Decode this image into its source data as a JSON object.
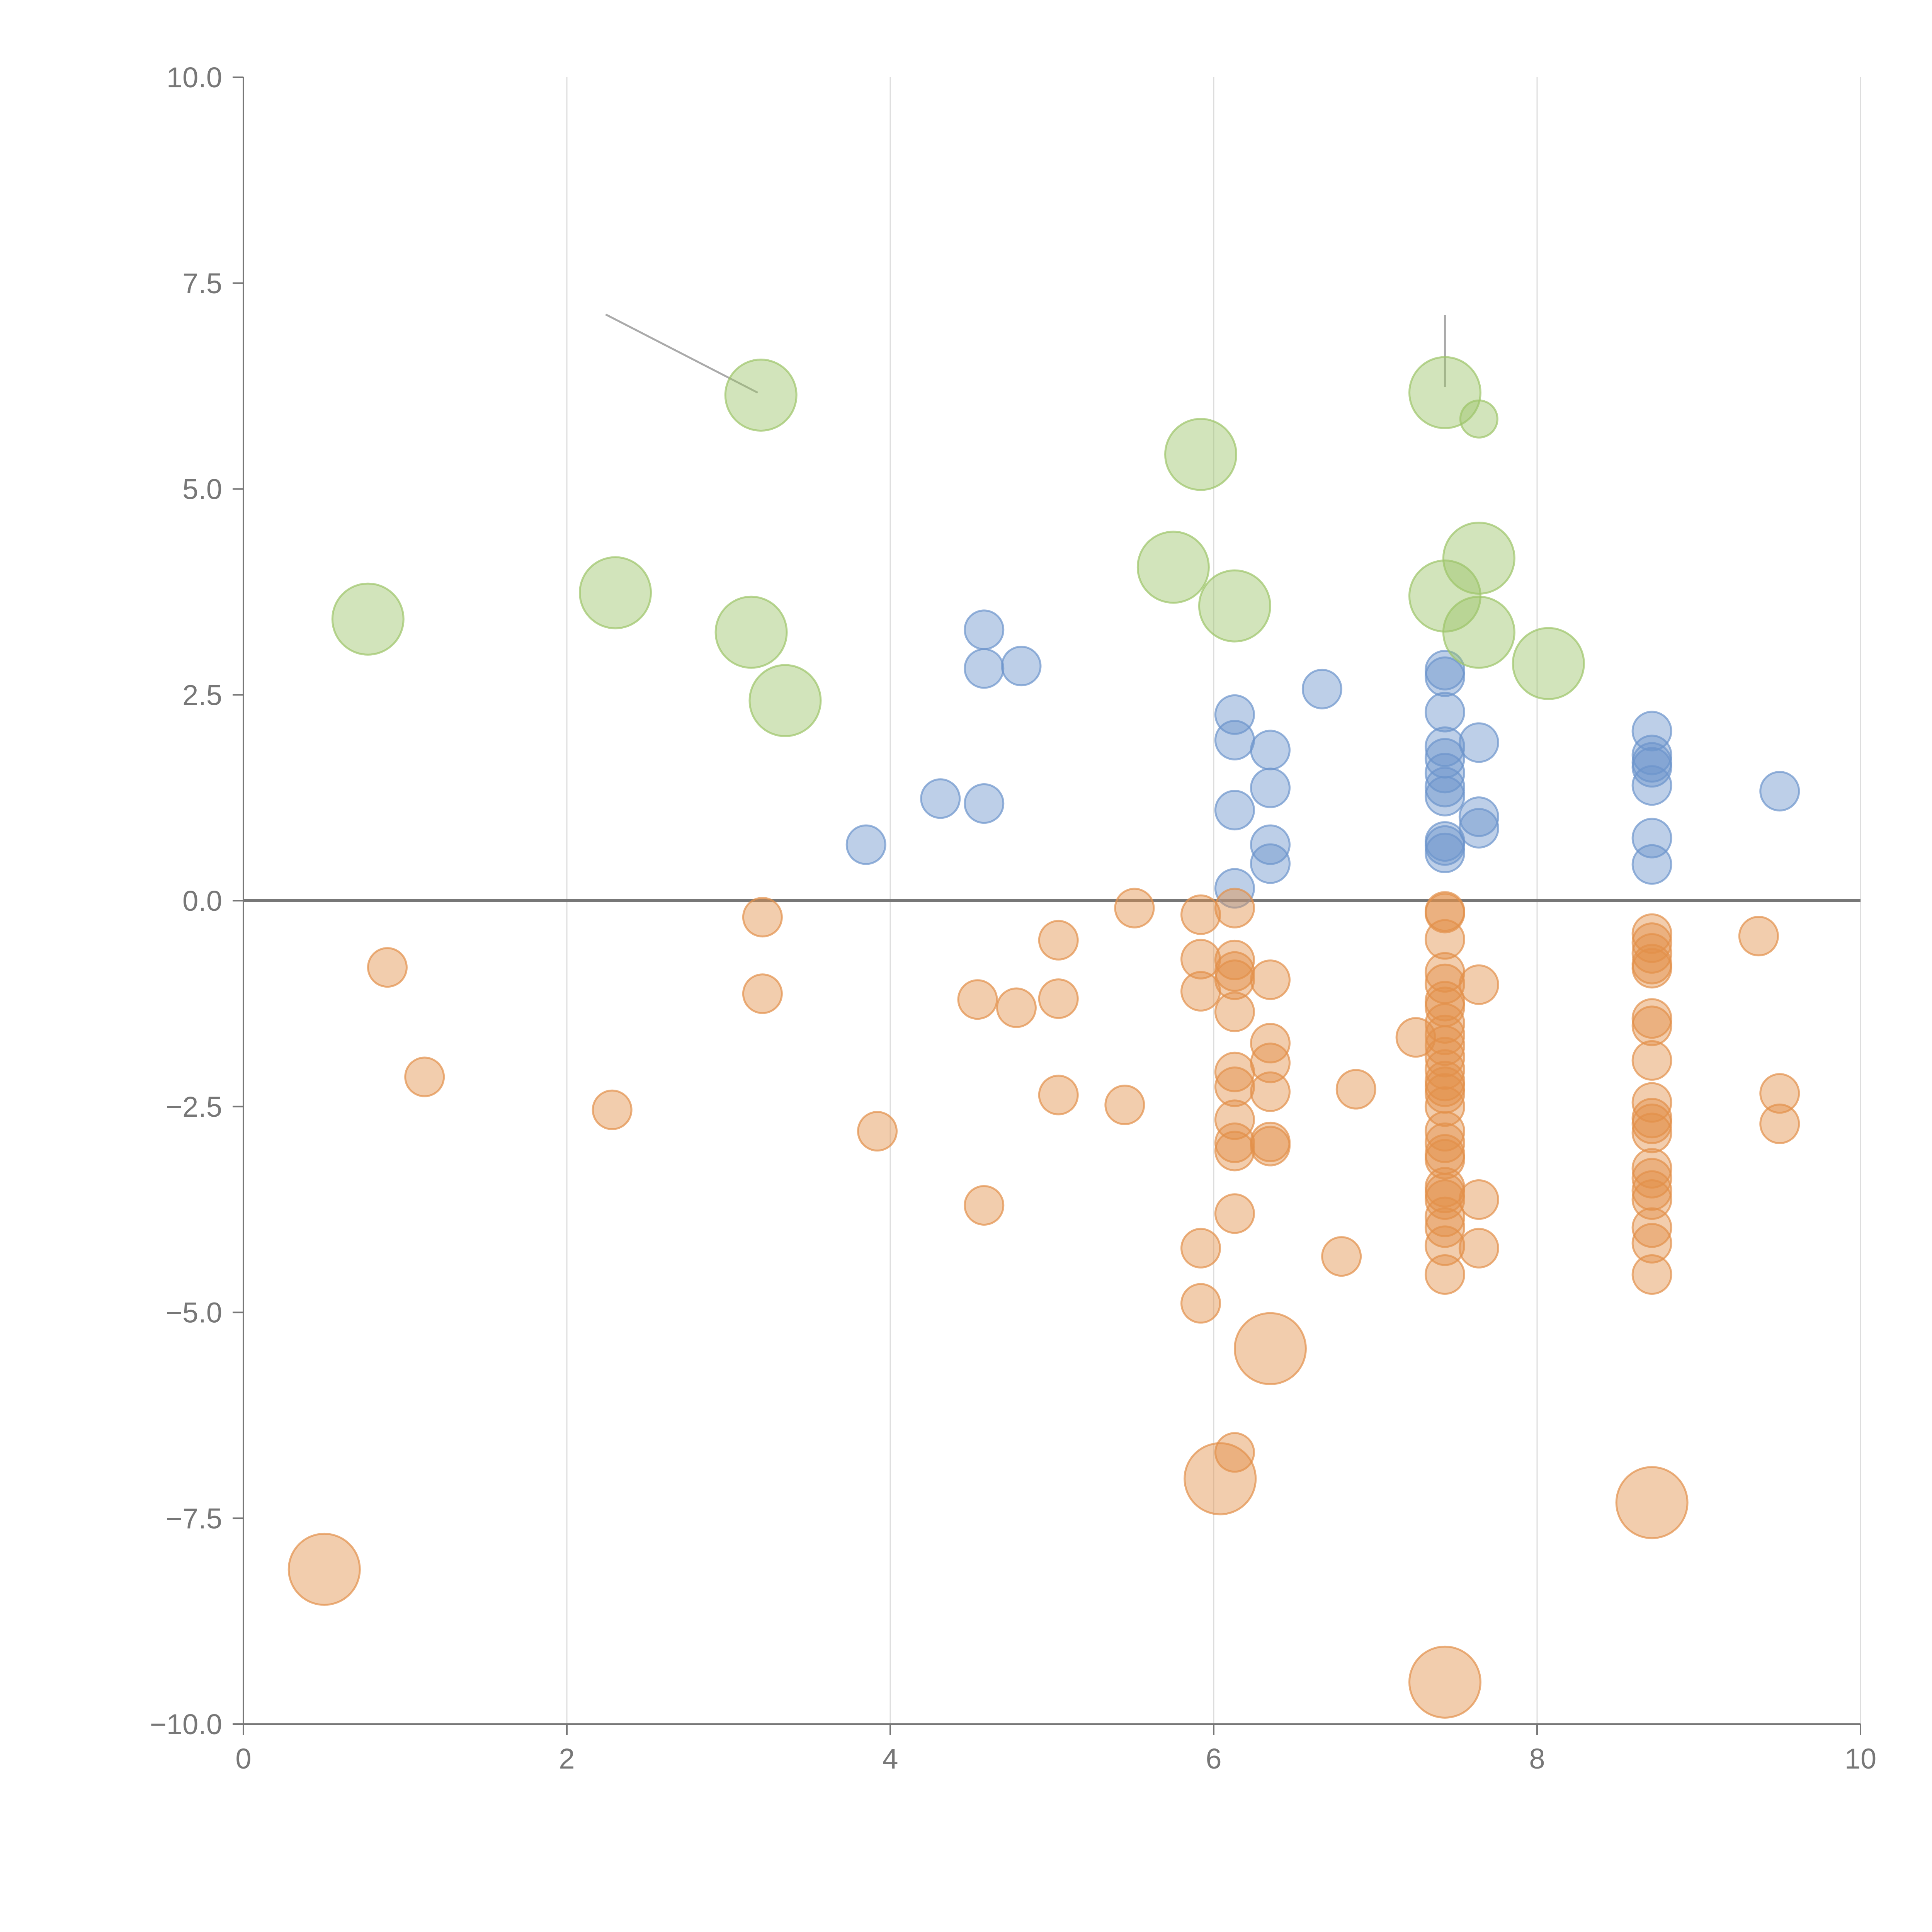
{
  "chart_data": {
    "type": "scatter",
    "title": "",
    "xlabel": "",
    "ylabel": "",
    "xlim": [
      0,
      10
    ],
    "ylim": [
      -10,
      10
    ],
    "x_ticks": [
      0,
      2,
      4,
      6,
      8,
      10
    ],
    "x_tick_labels": [
      "0",
      "2",
      "4",
      "6",
      "8",
      "10"
    ],
    "y_ticks": [
      10,
      7.5,
      5,
      2.5,
      0,
      -2.5,
      -5,
      -7.5,
      -10
    ],
    "y_tick_labels": [
      "10.0",
      "7.5",
      "5.0",
      "2.5",
      "0.0",
      "−2.5",
      "−5.0",
      "−7.5",
      "−10.0"
    ],
    "vertical_grid": true,
    "zero_line": true,
    "colors": {
      "blue": "#6c94cc",
      "orange": "#e2904a",
      "green": "#9cc468",
      "axis": "#777777",
      "grid": "#dddddd",
      "zero_line": "#777777",
      "label_line": "#aaaaaa"
    },
    "series": [
      {
        "name": "positive (blue)",
        "color_key": "blue",
        "points": [
          [
            3.85,
            0.68
          ],
          [
            4.31,
            1.24
          ],
          [
            4.58,
            3.29
          ],
          [
            4.58,
            2.82
          ],
          [
            4.58,
            1.18
          ],
          [
            4.81,
            2.85
          ],
          [
            6.13,
            2.26
          ],
          [
            6.13,
            1.95
          ],
          [
            6.13,
            1.1
          ],
          [
            6.13,
            0.15
          ],
          [
            6.35,
            1.83
          ],
          [
            6.35,
            1.37
          ],
          [
            6.35,
            0.68
          ],
          [
            6.35,
            0.45
          ],
          [
            6.67,
            2.57
          ],
          [
            7.43,
            2.8
          ],
          [
            7.43,
            2.72
          ],
          [
            7.43,
            2.29
          ],
          [
            7.43,
            1.87
          ],
          [
            7.43,
            1.73
          ],
          [
            7.43,
            1.55
          ],
          [
            7.43,
            1.38
          ],
          [
            7.43,
            1.27
          ],
          [
            7.43,
            0.72
          ],
          [
            7.43,
            0.67
          ],
          [
            7.43,
            0.58
          ],
          [
            7.64,
            1.92
          ],
          [
            7.64,
            1.02
          ],
          [
            7.64,
            0.88
          ],
          [
            8.71,
            2.06
          ],
          [
            8.71,
            1.77
          ],
          [
            8.71,
            1.68
          ],
          [
            8.71,
            1.62
          ],
          [
            8.71,
            1.4
          ],
          [
            8.71,
            0.76
          ],
          [
            8.71,
            0.44
          ],
          [
            9.5,
            1.33
          ]
        ]
      },
      {
        "name": "negative (orange)",
        "color_key": "orange",
        "points": [
          [
            0.89,
            -0.81
          ],
          [
            1.12,
            -2.14
          ],
          [
            2.28,
            -2.54
          ],
          [
            3.21,
            -0.2
          ],
          [
            3.21,
            -1.13
          ],
          [
            3.92,
            -2.8
          ],
          [
            4.54,
            -1.2
          ],
          [
            4.58,
            -3.7
          ],
          [
            4.78,
            -1.3
          ],
          [
            5.04,
            -0.48
          ],
          [
            5.04,
            -1.19
          ],
          [
            5.04,
            -2.36
          ],
          [
            5.45,
            -2.48
          ],
          [
            5.51,
            -0.09
          ],
          [
            5.92,
            -0.17
          ],
          [
            5.92,
            -0.71
          ],
          [
            5.92,
            -1.1
          ],
          [
            5.92,
            -4.22
          ],
          [
            5.92,
            -4.89
          ],
          [
            6.13,
            -0.09
          ],
          [
            6.13,
            -0.72
          ],
          [
            6.13,
            -0.86
          ],
          [
            6.13,
            -0.96
          ],
          [
            6.13,
            -1.35
          ],
          [
            6.13,
            -2.08
          ],
          [
            6.13,
            -2.26
          ],
          [
            6.13,
            -2.66
          ],
          [
            6.13,
            -2.94
          ],
          [
            6.13,
            -3.04
          ],
          [
            6.13,
            -3.8
          ],
          [
            6.13,
            -6.7
          ],
          [
            6.35,
            -0.96
          ],
          [
            6.35,
            -1.73
          ],
          [
            6.35,
            -1.97
          ],
          [
            6.35,
            -2.32
          ],
          [
            6.35,
            -2.93
          ],
          [
            6.35,
            -2.98
          ],
          [
            6.79,
            -4.32
          ],
          [
            6.88,
            -2.29
          ],
          [
            7.25,
            -1.66
          ],
          [
            7.43,
            -0.13
          ],
          [
            7.43,
            -0.15
          ],
          [
            7.43,
            -0.47
          ],
          [
            7.43,
            -0.87
          ],
          [
            7.43,
            -1.01
          ],
          [
            7.43,
            -1.22
          ],
          [
            7.43,
            -1.29
          ],
          [
            7.43,
            -1.49
          ],
          [
            7.43,
            -1.63
          ],
          [
            7.43,
            -1.76
          ],
          [
            7.43,
            -1.9
          ],
          [
            7.43,
            -2.05
          ],
          [
            7.43,
            -2.19
          ],
          [
            7.43,
            -2.26
          ],
          [
            7.43,
            -2.34
          ],
          [
            7.43,
            -2.5
          ],
          [
            7.43,
            -2.8
          ],
          [
            7.43,
            -2.94
          ],
          [
            7.43,
            -3.08
          ],
          [
            7.43,
            -3.14
          ],
          [
            7.43,
            -3.48
          ],
          [
            7.43,
            -3.55
          ],
          [
            7.43,
            -3.63
          ],
          [
            7.43,
            -3.84
          ],
          [
            7.43,
            -3.97
          ],
          [
            7.43,
            -4.19
          ],
          [
            7.43,
            -4.54
          ],
          [
            7.64,
            -1.02
          ],
          [
            7.64,
            -3.63
          ],
          [
            7.64,
            -4.22
          ],
          [
            8.71,
            -0.4
          ],
          [
            8.71,
            -0.51
          ],
          [
            8.71,
            -0.64
          ],
          [
            8.71,
            -0.77
          ],
          [
            8.71,
            -0.82
          ],
          [
            8.71,
            -1.43
          ],
          [
            8.71,
            -1.52
          ],
          [
            8.71,
            -1.94
          ],
          [
            8.71,
            -2.45
          ],
          [
            8.71,
            -2.64
          ],
          [
            8.71,
            -2.71
          ],
          [
            8.71,
            -2.82
          ],
          [
            8.71,
            -3.25
          ],
          [
            8.71,
            -3.37
          ],
          [
            8.71,
            -3.52
          ],
          [
            8.71,
            -3.63
          ],
          [
            8.71,
            -3.97
          ],
          [
            8.71,
            -4.16
          ],
          [
            8.71,
            -4.54
          ],
          [
            9.37,
            -0.43
          ],
          [
            9.5,
            -2.34
          ],
          [
            9.5,
            -2.71
          ]
        ]
      },
      {
        "name": "highlighted positive (green)",
        "color_key": "green",
        "points": [
          [
            0.77,
            3.42
          ],
          [
            2.3,
            3.74
          ],
          [
            3.14,
            3.26
          ],
          [
            3.2,
            6.14
          ],
          [
            3.35,
            2.43
          ],
          [
            5.75,
            4.05
          ],
          [
            5.92,
            5.42
          ],
          [
            6.13,
            3.58
          ],
          [
            7.43,
            6.17
          ],
          [
            7.43,
            3.7
          ],
          [
            7.64,
            5.85
          ],
          [
            7.64,
            4.16
          ],
          [
            7.64,
            3.26
          ],
          [
            8.07,
            2.88
          ]
        ]
      },
      {
        "name": "highlighted negative (orange, large)",
        "color_key": "orange",
        "points": [
          [
            0.5,
            -8.12
          ],
          [
            6.04,
            -7.02
          ],
          [
            6.35,
            -5.44
          ],
          [
            7.43,
            -9.49
          ],
          [
            8.71,
            -7.31
          ]
        ]
      }
    ],
    "label_lines": [
      {
        "from": [
          2.24,
          7.12
        ],
        "to": [
          3.18,
          6.17
        ]
      },
      {
        "from": [
          7.43,
          7.11
        ],
        "to": [
          7.43,
          6.24
        ]
      }
    ]
  }
}
